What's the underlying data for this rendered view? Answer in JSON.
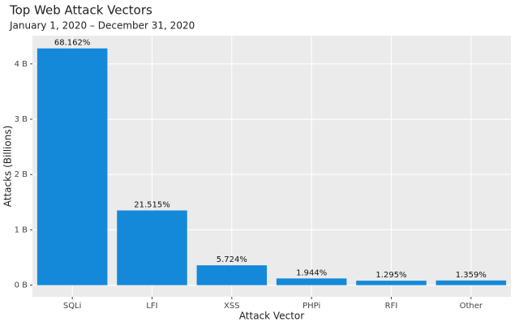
{
  "chart_data": {
    "type": "bar",
    "title": "Top Web Attack Vectors",
    "subtitle": "January 1, 2020 – December 31, 2020",
    "x_label": "Attack Vector",
    "y_label": "Attacks (Billions)",
    "categories": [
      "SQLi",
      "LFI",
      "XSS",
      "PHPi",
      "RFI",
      "Other"
    ],
    "values": [
      4.28,
      1.351,
      0.3595,
      0.122,
      0.0813,
      0.0853
    ],
    "share_labels": [
      "68.162%",
      "21.515%",
      "5.724%",
      "1.944%",
      "1.295%",
      "1.359%"
    ],
    "color": "#1589d9",
    "ylim": [
      -0.21,
      4.51
    ],
    "yticks": [
      {
        "value": 0,
        "label": "0 B"
      },
      {
        "value": 1,
        "label": "1 B"
      },
      {
        "value": 2,
        "label": "2 B"
      },
      {
        "value": 3,
        "label": "3 B"
      },
      {
        "value": 4,
        "label": "4 B"
      }
    ],
    "grid": true
  }
}
